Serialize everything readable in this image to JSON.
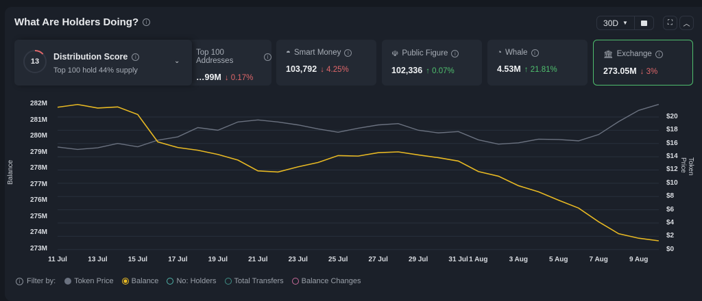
{
  "header": {
    "title": "What Are Holders Doing?",
    "range": "30D"
  },
  "cards": [
    {
      "label": "Distribution Score",
      "score": "13",
      "subtitle": "Top 100 hold 44% supply",
      "score_fraction": 0.13
    },
    {
      "label": "Top 100 Addresses",
      "value": "…99M",
      "change": "0.17%",
      "direction": "down"
    },
    {
      "label": "Smart Money",
      "value": "103,792",
      "change": "4.25%",
      "direction": "down"
    },
    {
      "label": "Public Figure",
      "value": "102,336",
      "change": "0.07%",
      "direction": "up"
    },
    {
      "label": "Whale",
      "value": "4.53M",
      "change": "21.81%",
      "direction": "up"
    },
    {
      "label": "Exchange",
      "value": "273.05M",
      "change": "3%",
      "direction": "down"
    }
  ],
  "filter": {
    "label": "Filter by:",
    "options": [
      {
        "label": "Token Price",
        "color": "#6b7280",
        "active": true
      },
      {
        "label": "Balance",
        "color": "#e8b923",
        "active": true
      },
      {
        "label": "No: Holders",
        "color": "#4fb3a9",
        "active": false
      },
      {
        "label": "Total Transfers",
        "color": "#3f8f86",
        "active": false
      },
      {
        "label": "Balance Changes",
        "color": "#c86a9a",
        "active": false
      }
    ]
  },
  "chart_data": {
    "type": "line",
    "x": [
      "11 Jul",
      "12 Jul",
      "13 Jul",
      "14 Jul",
      "15 Jul",
      "16 Jul",
      "17 Jul",
      "18 Jul",
      "19 Jul",
      "20 Jul",
      "21 Jul",
      "22 Jul",
      "23 Jul",
      "24 Jul",
      "25 Jul",
      "26 Jul",
      "27 Jul",
      "28 Jul",
      "29 Jul",
      "30 Jul",
      "31 Jul",
      "1 Aug",
      "2 Aug",
      "3 Aug",
      "4 Aug",
      "5 Aug",
      "6 Aug",
      "7 Aug",
      "8 Aug",
      "9 Aug",
      "10 Aug"
    ],
    "xtick_labels": [
      "11 Jul",
      "13 Jul",
      "15 Jul",
      "17 Jul",
      "19 Jul",
      "21 Jul",
      "23 Jul",
      "25 Jul",
      "27 Jul",
      "29 Jul",
      "31 Jul",
      "1 Aug",
      "3 Aug",
      "5 Aug",
      "7 Aug",
      "9 Aug"
    ],
    "ylabel": "Balance",
    "y2label": "Token Price",
    "ylim": [
      273,
      282
    ],
    "y2lim": [
      0,
      20
    ],
    "yticks": [
      "282M",
      "281M",
      "280M",
      "279M",
      "278M",
      "277M",
      "276M",
      "275M",
      "274M",
      "273M"
    ],
    "y2ticks": [
      "$20",
      "$18",
      "$16",
      "$14",
      "$12",
      "$10",
      "$8",
      "$6",
      "$4",
      "$2",
      "$0"
    ],
    "grid": true,
    "series": [
      {
        "name": "Balance",
        "axis": "left",
        "unit": "M",
        "color": "#e8b923",
        "values": [
          281.8,
          281.97,
          281.75,
          281.82,
          281.35,
          279.65,
          279.3,
          279.13,
          278.87,
          278.52,
          277.85,
          277.78,
          278.1,
          278.37,
          278.8,
          278.77,
          278.98,
          279.03,
          278.84,
          278.67,
          278.46,
          277.81,
          277.52,
          276.93,
          276.55,
          276.03,
          275.54,
          274.69,
          273.95,
          273.67,
          273.51
        ]
      },
      {
        "name": "Token Price",
        "axis": "right",
        "unit": "$",
        "color": "#6b7280",
        "values": [
          15.46,
          15.1,
          15.35,
          16.0,
          15.5,
          16.5,
          17.0,
          18.4,
          18.0,
          19.25,
          19.55,
          19.25,
          18.8,
          18.2,
          17.7,
          18.3,
          18.8,
          19.0,
          18.0,
          17.6,
          17.8,
          16.55,
          15.9,
          16.1,
          16.65,
          16.6,
          16.4,
          17.35,
          19.3,
          21.0,
          21.9
        ]
      }
    ]
  }
}
